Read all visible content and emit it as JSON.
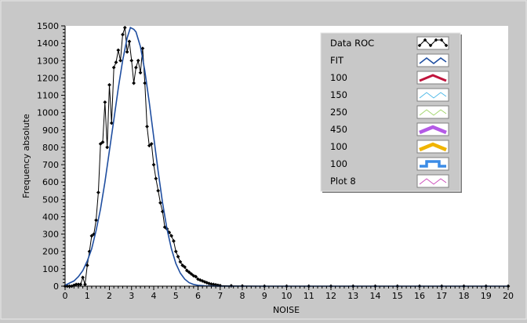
{
  "chart_data": {
    "type": "line",
    "title": "",
    "xlabel": "NOISE",
    "ylabel": "Frequency absolute",
    "xlim": [
      0,
      20
    ],
    "ylim": [
      0,
      1500
    ],
    "x_ticks": [
      0,
      1,
      2,
      3,
      4,
      5,
      6,
      7,
      8,
      9,
      10,
      11,
      12,
      13,
      14,
      15,
      16,
      17,
      18,
      19,
      20
    ],
    "y_ticks": [
      0,
      100,
      200,
      300,
      400,
      500,
      600,
      700,
      800,
      900,
      1000,
      1100,
      1200,
      1300,
      1400,
      1500
    ],
    "grid": false,
    "legend_position": "top-right",
    "colors": {
      "plot_bg": "#ffffff",
      "frame_bg": "#c8c8c8",
      "data": "#000000",
      "fit": "#1f4ea0"
    },
    "series": [
      {
        "name": "Data ROC",
        "style": "line-diamond-markers",
        "x": [
          0.0,
          0.1,
          0.2,
          0.3,
          0.4,
          0.5,
          0.6,
          0.7,
          0.8,
          0.9,
          1.0,
          1.1,
          1.2,
          1.3,
          1.4,
          1.5,
          1.6,
          1.7,
          1.8,
          1.9,
          2.0,
          2.1,
          2.2,
          2.3,
          2.4,
          2.5,
          2.6,
          2.7,
          2.8,
          2.9,
          3.0,
          3.1,
          3.2,
          3.3,
          3.4,
          3.5,
          3.6,
          3.7,
          3.8,
          3.9,
          4.0,
          4.1,
          4.2,
          4.3,
          4.4,
          4.5,
          4.6,
          4.7,
          4.8,
          4.9,
          5.0,
          5.1,
          5.2,
          5.3,
          5.4,
          5.5,
          5.6,
          5.7,
          5.8,
          5.9,
          6.0,
          6.1,
          6.2,
          6.3,
          6.4,
          6.5,
          6.6,
          6.7,
          6.8,
          6.9,
          7.0,
          7.5,
          8.0,
          9.0,
          10.0,
          11.0,
          12.0,
          13.0,
          14.0,
          15.0,
          16.0,
          17.0,
          18.0,
          19.0,
          20.0
        ],
        "y": [
          0,
          0,
          0,
          0,
          5,
          10,
          10,
          10,
          50,
          10,
          120,
          200,
          290,
          300,
          380,
          540,
          820,
          830,
          1060,
          800,
          1160,
          940,
          1260,
          1290,
          1360,
          1300,
          1450,
          1490,
          1350,
          1410,
          1300,
          1170,
          1260,
          1300,
          1230,
          1370,
          1170,
          920,
          810,
          820,
          700,
          620,
          550,
          480,
          430,
          340,
          330,
          310,
          290,
          260,
          200,
          170,
          140,
          120,
          110,
          90,
          80,
          70,
          60,
          55,
          40,
          35,
          30,
          25,
          20,
          15,
          12,
          10,
          8,
          5,
          3,
          2,
          1,
          0,
          0,
          0,
          0,
          0,
          0,
          0,
          0,
          0,
          0,
          0,
          0
        ]
      },
      {
        "name": "FIT",
        "style": "line",
        "x": [
          0.0,
          0.2,
          0.4,
          0.6,
          0.8,
          1.0,
          1.2,
          1.4,
          1.6,
          1.8,
          2.0,
          2.2,
          2.4,
          2.6,
          2.8,
          2.95,
          3.1,
          3.2,
          3.4,
          3.6,
          3.8,
          4.0,
          4.2,
          4.4,
          4.6,
          4.8,
          5.0,
          5.2,
          5.4,
          5.6,
          5.8,
          6.0,
          6.3,
          6.6,
          7.0,
          8.0,
          10.0,
          15.0,
          20.0
        ],
        "y": [
          5,
          18,
          30,
          55,
          90,
          145,
          215,
          320,
          445,
          600,
          780,
          960,
          1140,
          1300,
          1430,
          1490,
          1480,
          1465,
          1380,
          1240,
          1060,
          860,
          660,
          480,
          330,
          215,
          130,
          75,
          40,
          20,
          10,
          5,
          2,
          1,
          0,
          0,
          0,
          0,
          0
        ]
      },
      {
        "name": "100",
        "style": "legend-only"
      },
      {
        "name": "150",
        "style": "legend-only"
      },
      {
        "name": "250",
        "style": "legend-only"
      },
      {
        "name": "450",
        "style": "legend-only"
      },
      {
        "name": "100",
        "style": "legend-only"
      },
      {
        "name": "100",
        "style": "legend-only"
      },
      {
        "name": "Plot 8",
        "style": "legend-only"
      }
    ],
    "legend": [
      {
        "label": "Data ROC",
        "color": "#000000",
        "swatch": "diamond"
      },
      {
        "label": "FIT",
        "color": "#1f4ea0",
        "swatch": "zigzag"
      },
      {
        "label": "100",
        "color": "#c0143c",
        "swatch": "zigzag-thick"
      },
      {
        "label": "150",
        "color": "#40b4e6",
        "swatch": "zigzag-thin"
      },
      {
        "label": "250",
        "color": "#9ad260",
        "swatch": "zigzag-thin"
      },
      {
        "label": "450",
        "color": "#b45ae6",
        "swatch": "zigzag-bold"
      },
      {
        "label": "100",
        "color": "#f0b400",
        "swatch": "zigzag-bold"
      },
      {
        "label": "100",
        "color": "#3c8ce6",
        "swatch": "step"
      },
      {
        "label": "Plot 8",
        "color": "#c83cb4",
        "swatch": "zigzag-thin"
      }
    ]
  }
}
